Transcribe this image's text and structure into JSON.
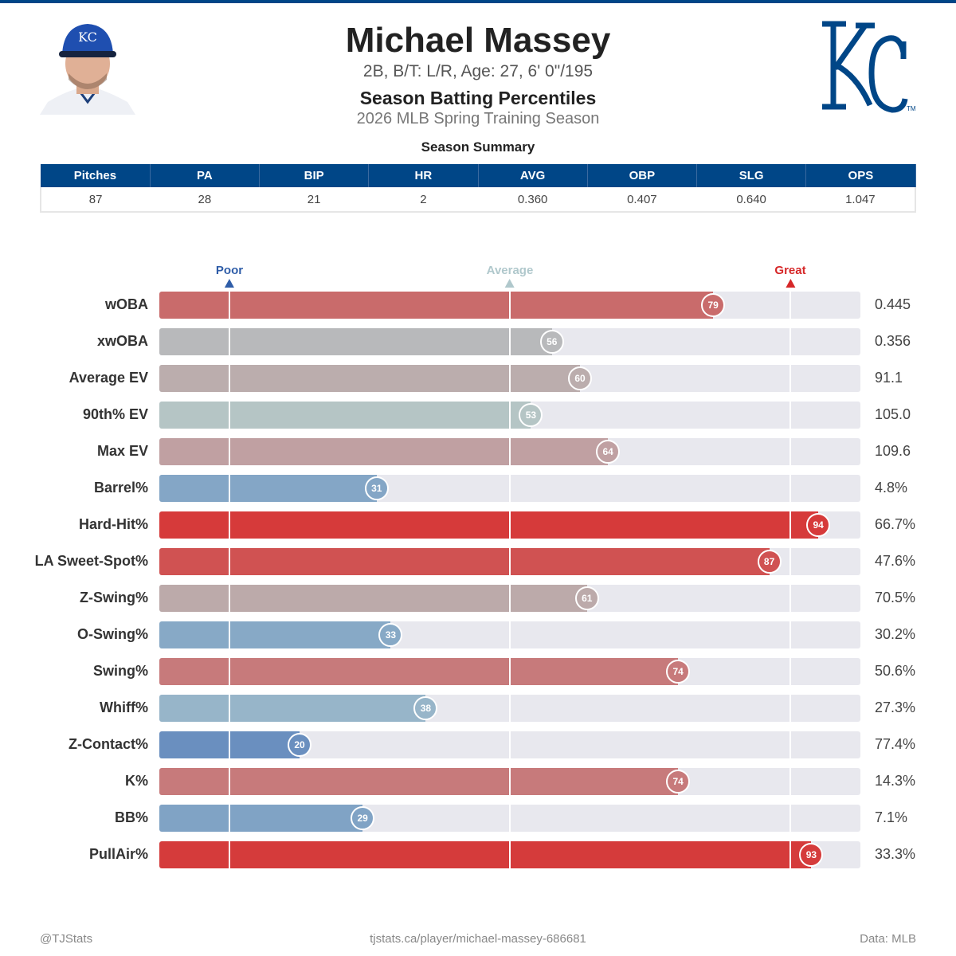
{
  "header": {
    "name": "Michael Massey",
    "bio": "2B, B/T: L/R, Age: 27, 6' 0\"/195",
    "title": "Season Batting Percentiles",
    "subtitle": "2026 MLB Spring Training Season",
    "logo_text": "KC",
    "logo_color": "#004687"
  },
  "summary": {
    "title": "Season Summary",
    "columns": [
      "Pitches",
      "PA",
      "BIP",
      "HR",
      "AVG",
      "OBP",
      "SLG",
      "OPS"
    ],
    "values": [
      "87",
      "28",
      "21",
      "2",
      "0.360",
      "0.407",
      "0.640",
      "1.047"
    ]
  },
  "chart_data": {
    "type": "bar",
    "orientation": "horizontal",
    "xlim": [
      0,
      100
    ],
    "markers": [
      {
        "label": "Poor",
        "percentile": 10,
        "color": "#2f5da8"
      },
      {
        "label": "Average",
        "percentile": 50,
        "color": "#b0c8cc"
      },
      {
        "label": "Great",
        "percentile": 90,
        "color": "#d62728"
      }
    ],
    "rows": [
      {
        "label": "wOBA",
        "percentile": 79,
        "value": "0.445",
        "color": "#c96b6b"
      },
      {
        "label": "xwOBA",
        "percentile": 56,
        "value": "0.356",
        "color": "#b8b9bb"
      },
      {
        "label": "Average EV",
        "percentile": 60,
        "value": "91.1",
        "color": "#bbadad"
      },
      {
        "label": "90th% EV",
        "percentile": 53,
        "value": "105.0",
        "color": "#b5c5c5"
      },
      {
        "label": "Max EV",
        "percentile": 64,
        "value": "109.6",
        "color": "#c0a0a2"
      },
      {
        "label": "Barrel%",
        "percentile": 31,
        "value": "4.8%",
        "color": "#84a6c6"
      },
      {
        "label": "Hard-Hit%",
        "percentile": 94,
        "value": "66.7%",
        "color": "#d63a3a"
      },
      {
        "label": "LA Sweet-Spot%",
        "percentile": 87,
        "value": "47.6%",
        "color": "#d05252"
      },
      {
        "label": "Z-Swing%",
        "percentile": 61,
        "value": "70.5%",
        "color": "#bcaaaa"
      },
      {
        "label": "O-Swing%",
        "percentile": 33,
        "value": "30.2%",
        "color": "#87a9c6"
      },
      {
        "label": "Swing%",
        "percentile": 74,
        "value": "50.6%",
        "color": "#c77a7b"
      },
      {
        "label": "Whiff%",
        "percentile": 38,
        "value": "27.3%",
        "color": "#97b5c9"
      },
      {
        "label": "Z-Contact%",
        "percentile": 20,
        "value": "77.4%",
        "color": "#6a8fbf"
      },
      {
        "label": "K%",
        "percentile": 74,
        "value": "14.3%",
        "color": "#c77a7b"
      },
      {
        "label": "BB%",
        "percentile": 29,
        "value": "7.1%",
        "color": "#80a3c5"
      },
      {
        "label": "PullAir%",
        "percentile": 93,
        "value": "33.3%",
        "color": "#d53b3b"
      }
    ]
  },
  "footer": {
    "left": "@TJStats",
    "center": "tjstats.ca/player/michael-massey-686681",
    "right": "Data: MLB"
  }
}
